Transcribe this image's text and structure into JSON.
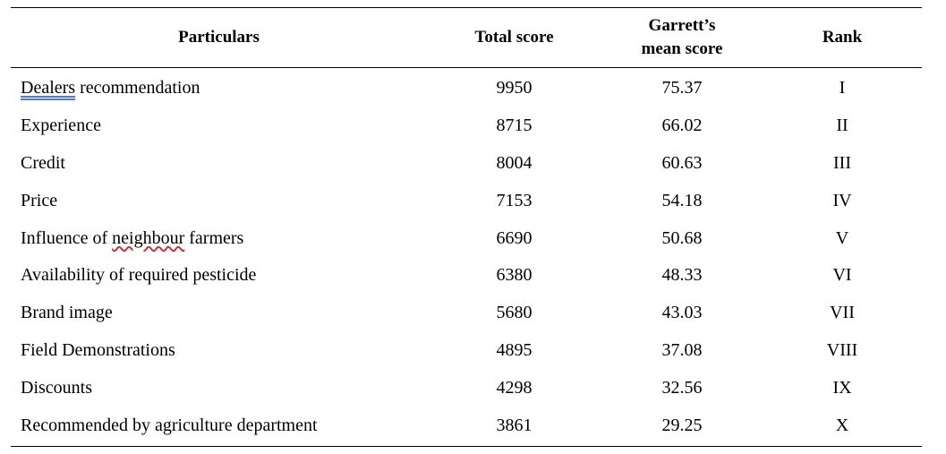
{
  "table": {
    "headers": {
      "particulars": "Particulars",
      "total_score": "Total score",
      "mean_score_line1": "Garrett’s",
      "mean_score_line2": "mean score",
      "rank": "Rank"
    },
    "rows": [
      {
        "pre": "",
        "mark": "Dealers",
        "post": " recommendation",
        "mark_style": "blue",
        "total": "9950",
        "mean": "75.37",
        "rank": "I"
      },
      {
        "pre": "Experience",
        "mark": "",
        "post": "",
        "mark_style": "",
        "total": "8715",
        "mean": "66.02",
        "rank": "II"
      },
      {
        "pre": "Credit",
        "mark": "",
        "post": "",
        "mark_style": "",
        "total": "8004",
        "mean": "60.63",
        "rank": "III"
      },
      {
        "pre": "Price",
        "mark": "",
        "post": "",
        "mark_style": "",
        "total": "7153",
        "mean": "54.18",
        "rank": "IV"
      },
      {
        "pre": "Influence of ",
        "mark": "neighbour",
        "post": " farmers",
        "mark_style": "red",
        "total": "6690",
        "mean": "50.68",
        "rank": "V"
      },
      {
        "pre": "Availability of required pesticide",
        "mark": "",
        "post": "",
        "mark_style": "",
        "total": "6380",
        "mean": "48.33",
        "rank": "VI"
      },
      {
        "pre": "Brand image",
        "mark": "",
        "post": "",
        "mark_style": "",
        "total": "5680",
        "mean": "43.03",
        "rank": "VII"
      },
      {
        "pre": "Field Demonstrations",
        "mark": "",
        "post": "",
        "mark_style": "",
        "total": "4895",
        "mean": "37.08",
        "rank": "VIII"
      },
      {
        "pre": "Discounts",
        "mark": "",
        "post": "",
        "mark_style": "",
        "total": "4298",
        "mean": "32.56",
        "rank": "IX"
      },
      {
        "pre": "Recommended by agriculture department",
        "mark": "",
        "post": "",
        "mark_style": "",
        "total": "3861",
        "mean": "29.25",
        "rank": "X"
      }
    ]
  }
}
